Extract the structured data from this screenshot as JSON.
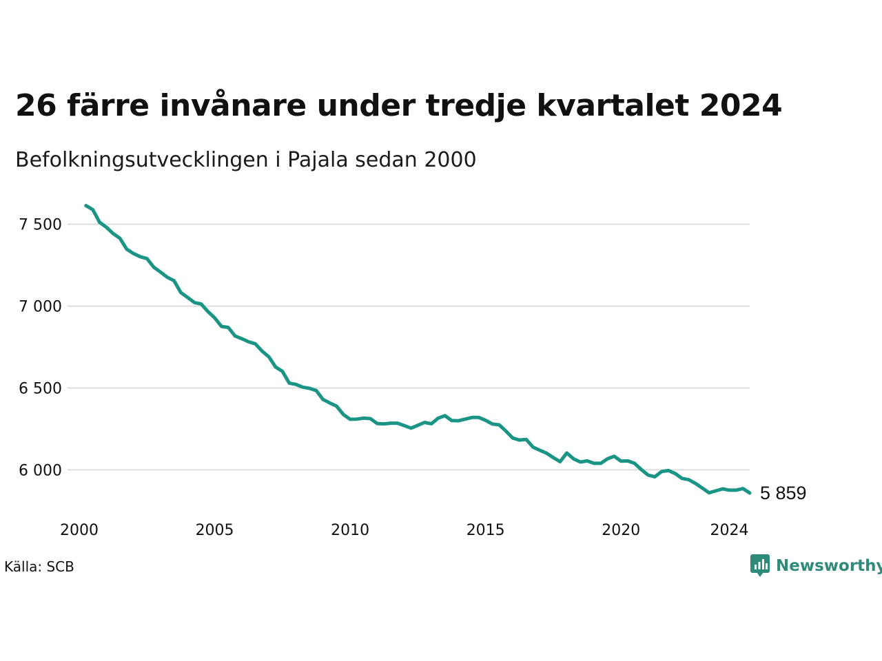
{
  "title": "26 färre invånare under tredje kvartalet 2024",
  "subtitle": "Befolkningsutvecklingen i Pajala sedan 2000",
  "source": "Källa: SCB",
  "brand": {
    "name": "Newsworthy",
    "icon": "newsworthy-logo-icon",
    "color": "#2e8b7a"
  },
  "colors": {
    "line": "#1a9585",
    "grid": "#dddddd"
  },
  "chart_data": {
    "type": "line",
    "title": "26 färre invånare under tredje kvartalet 2024",
    "subtitle": "Befolkningsutvecklingen i Pajala sedan 2000",
    "xlabel": "",
    "ylabel": "",
    "xlim": [
      2000,
      2024.75
    ],
    "ylim": [
      5800,
      7650
    ],
    "grid": true,
    "legend": "none",
    "x_ticks": [
      2000,
      2005,
      2010,
      2015,
      2020,
      2024
    ],
    "x_tick_labels": [
      "2000",
      "2005",
      "2010",
      "2015",
      "2020",
      "2024"
    ],
    "y_ticks": [
      6000,
      6500,
      7000,
      7500
    ],
    "y_tick_labels": [
      "6 000",
      "6 500",
      "7 000",
      "7 500"
    ],
    "end_label": "5 859",
    "series": [
      {
        "x_start": 2000.25,
        "x_step": 0.25,
        "values": [
          7614,
          7589,
          7512,
          7482,
          7443,
          7414,
          7348,
          7321,
          7302,
          7290,
          7238,
          7208,
          7176,
          7155,
          7083,
          7053,
          7022,
          7013,
          6967,
          6928,
          6876,
          6870,
          6818,
          6801,
          6782,
          6770,
          6725,
          6690,
          6628,
          6602,
          6530,
          6522,
          6505,
          6498,
          6484,
          6430,
          6409,
          6389,
          6338,
          6309,
          6310,
          6316,
          6313,
          6283,
          6281,
          6285,
          6285,
          6270,
          6255,
          6272,
          6290,
          6282,
          6316,
          6331,
          6301,
          6300,
          6310,
          6320,
          6320,
          6303,
          6280,
          6275,
          6237,
          6195,
          6182,
          6186,
          6139,
          6120,
          6102,
          6075,
          6050,
          6103,
          6067,
          6048,
          6055,
          6040,
          6040,
          6068,
          6083,
          6053,
          6055,
          6040,
          6002,
          5968,
          5958,
          5990,
          5996,
          5978,
          5948,
          5940,
          5917,
          5889,
          5860,
          5872,
          5884,
          5876,
          5876,
          5886,
          5859
        ]
      }
    ]
  }
}
